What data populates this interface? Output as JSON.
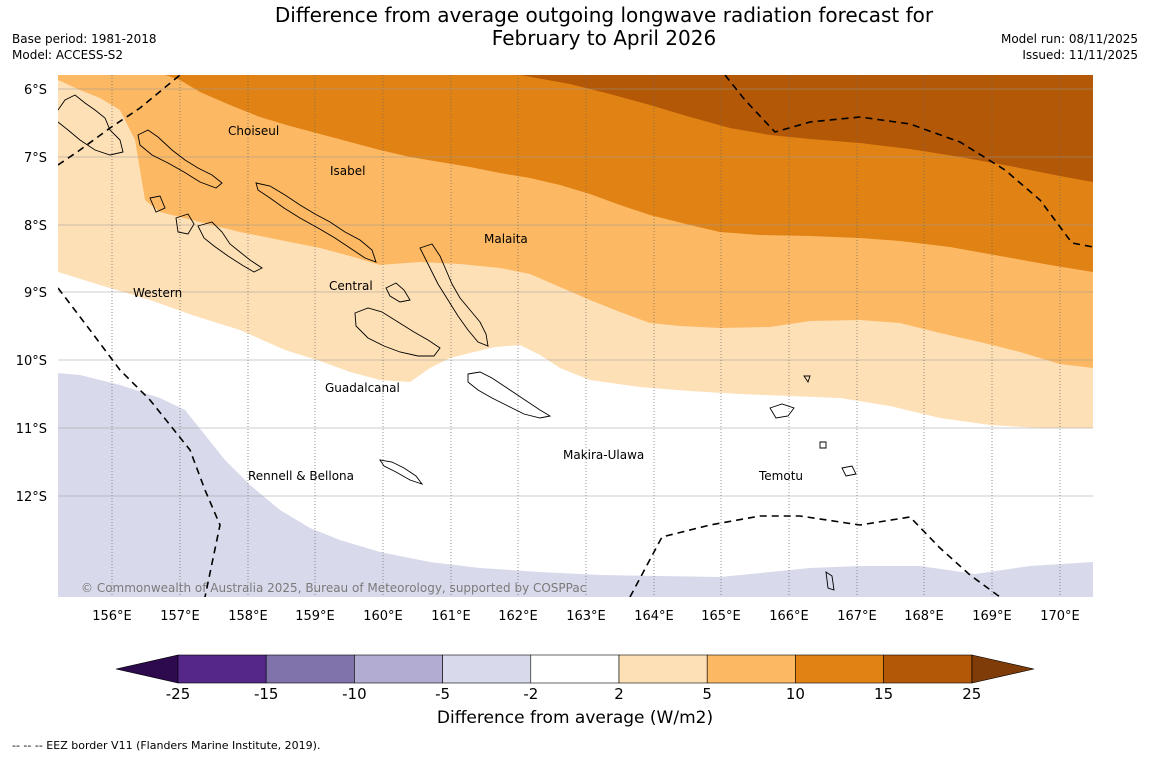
{
  "title": {
    "line1": "Difference from average outgoing longwave radiation forecast for",
    "line2": "February to April 2026"
  },
  "meta_left": {
    "base_period": "Base period: 1981-2018",
    "model": "Model: ACCESS-S2"
  },
  "meta_right": {
    "model_run": "Model run: 08/11/2025",
    "issued": "Issued: 11/11/2025"
  },
  "map": {
    "lat_labels": [
      "6°S",
      "7°S",
      "8°S",
      "9°S",
      "10°S",
      "11°S",
      "12°S"
    ],
    "lon_labels": [
      "156°E",
      "157°E",
      "158°E",
      "159°E",
      "160°E",
      "161°E",
      "162°E",
      "163°E",
      "164°E",
      "165°E",
      "166°E",
      "167°E",
      "168°E",
      "169°E",
      "170°E"
    ],
    "regions": {
      "choiseul": "Choiseul",
      "isabel": "Isabel",
      "malaita": "Malaita",
      "western": "Western",
      "central": "Central",
      "guadalcanal": "Guadalcanal",
      "makira": "Makira-Ulawa",
      "rennell": "Rennell & Bellona",
      "temotu": "Temotu"
    },
    "copyright": "© Commonwealth of Australia 2025, Bureau of Meteorology, supported by COSPPac",
    "fill_colors": {
      "c_neg25": "#2d0a4e",
      "c_neg15": "#542788",
      "c_neg10": "#8073ac",
      "c_neg5": "#b2abd2",
      "c_neg2": "#d8daeb",
      "c_0": "#ffffff",
      "c_2": "#fee0b6",
      "c_5": "#fdb863",
      "c_10": "#e08214",
      "c_15": "#b35806",
      "c_25": "#7f3b08"
    }
  },
  "colorbar": {
    "tick_labels": [
      "-25",
      "-15",
      "-10",
      "-5",
      "-2",
      "2",
      "5",
      "10",
      "15",
      "25"
    ],
    "segment_colors": [
      "#542788",
      "#8073ac",
      "#b2abd2",
      "#d8daeb",
      "#ffffff",
      "#fee0b6",
      "#fdb863",
      "#e08214",
      "#b35806"
    ],
    "low_extension_color": "#2d0a4e",
    "high_extension_color": "#7f3b08",
    "title": "Difference from average (W/m2)"
  },
  "footnote": "--  --  -- EEZ border V11 (Flanders Marine Institute, 2019)."
}
